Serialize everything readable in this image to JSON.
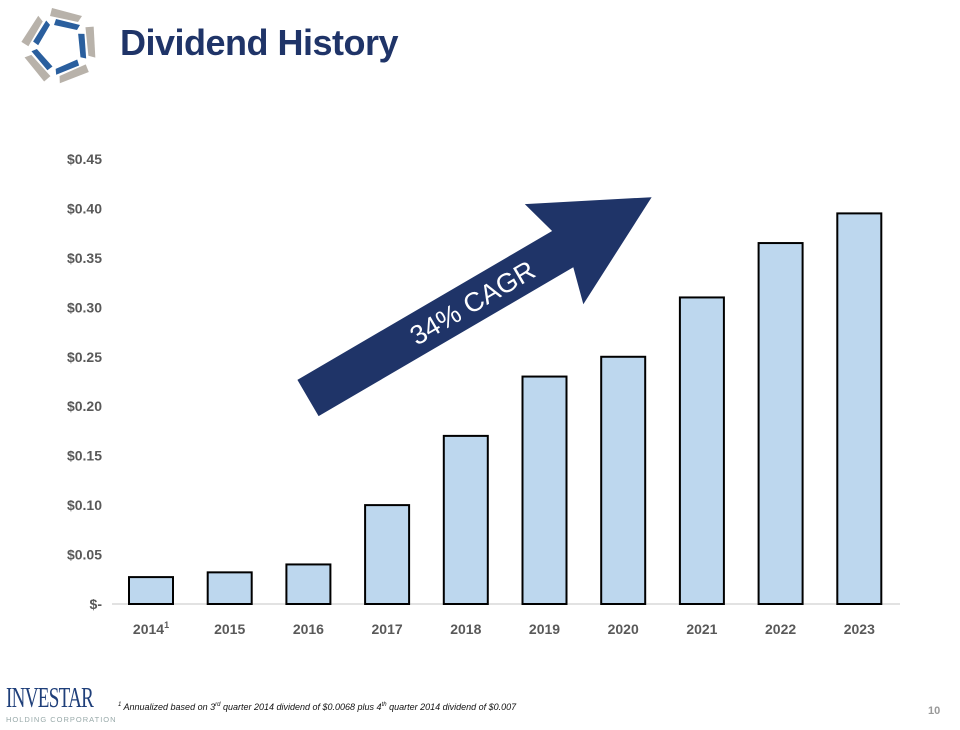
{
  "header": {
    "title": "Dividend History"
  },
  "chart_data": {
    "type": "bar",
    "categories": [
      "2014",
      "2015",
      "2016",
      "2017",
      "2018",
      "2019",
      "2020",
      "2021",
      "2022",
      "2023"
    ],
    "category_superscripts": {
      "2014": "1"
    },
    "values": [
      0.0272,
      0.032,
      0.04,
      0.1,
      0.17,
      0.23,
      0.25,
      0.31,
      0.365,
      0.395
    ],
    "ylim": [
      0,
      0.45
    ],
    "yticks": [
      "$-",
      "$0.05",
      "$0.10",
      "$0.15",
      "$0.20",
      "$0.25",
      "$0.30",
      "$0.35",
      "$0.40",
      "$0.45"
    ],
    "grid": false,
    "bar_color": "#bdd7ee",
    "annotation": "34% CAGR",
    "arrow_color": "#1f3468"
  },
  "footer": {
    "brand": "INVESTAR",
    "brand_sub": "HOLDING CORPORATION",
    "footnote_mark": "1",
    "footnote_parts": [
      "Annualized based on 3",
      "rd",
      " quarter 2014 dividend of $0.0068 plus 4",
      "th",
      " quarter 2014 dividend of $0.007"
    ],
    "page": "10"
  }
}
